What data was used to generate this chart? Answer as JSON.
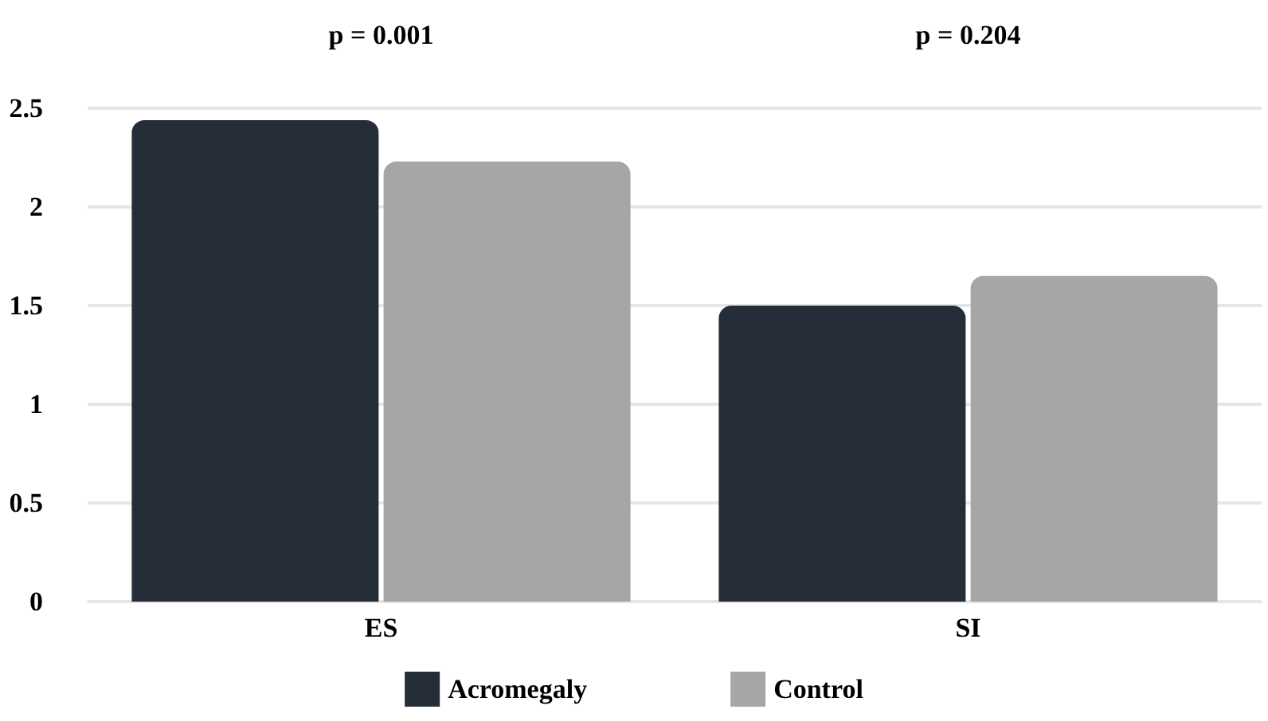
{
  "chart_data": {
    "type": "bar",
    "categories": [
      "ES",
      "SI"
    ],
    "series": [
      {
        "name": "Acromegaly",
        "color": "#252d38",
        "values": [
          2.44,
          1.5
        ]
      },
      {
        "name": "Control",
        "color": "#a6a6a6",
        "values": [
          2.23,
          1.65
        ]
      }
    ],
    "ylim": [
      0,
      2.5
    ],
    "yticks": [
      0,
      0.5,
      1,
      1.5,
      2,
      2.5
    ],
    "grid": "y",
    "legend": "bottom",
    "annotations": [
      "p = 0.001",
      "p = 0.204"
    ]
  }
}
